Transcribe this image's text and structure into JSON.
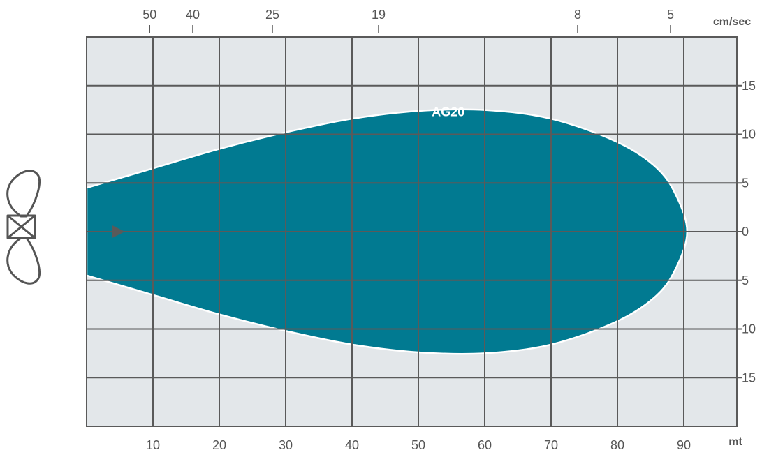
{
  "chart_data": {
    "type": "area",
    "title": "",
    "x_axis": {
      "unit": "mt",
      "range": [
        0,
        98
      ],
      "ticks": [
        10,
        20,
        30,
        40,
        50,
        60,
        70,
        80,
        90
      ],
      "tick_labels": [
        "10",
        "20",
        "30",
        "40",
        "50",
        "60",
        "70",
        "80",
        "90"
      ],
      "grid": true
    },
    "y_axis": {
      "range": [
        -20,
        20
      ],
      "ticks": [
        15,
        10,
        5,
        0,
        -5,
        -10,
        -15
      ],
      "tick_labels": [
        "15",
        "10",
        "5",
        "0",
        "5",
        "10",
        "15"
      ],
      "grid": true
    },
    "top_axis": {
      "unit": "cm/sec",
      "ticks": [
        {
          "x": 9.5,
          "label": "50"
        },
        {
          "x": 16,
          "label": "40"
        },
        {
          "x": 28,
          "label": "25"
        },
        {
          "x": 44,
          "label": "19"
        },
        {
          "x": 74,
          "label": "8"
        },
        {
          "x": 88,
          "label": "5"
        }
      ]
    },
    "series": [
      {
        "name": "AG20",
        "label_position": [
          54.5,
          12.3
        ],
        "color": "#017a91",
        "upper": [
          {
            "x": 0,
            "y": 4.5
          },
          {
            "x": 10,
            "y": 6.5
          },
          {
            "x": 20,
            "y": 8.5
          },
          {
            "x": 30,
            "y": 10.2
          },
          {
            "x": 40,
            "y": 11.6
          },
          {
            "x": 50,
            "y": 12.4
          },
          {
            "x": 60,
            "y": 12.5
          },
          {
            "x": 70,
            "y": 11.6
          },
          {
            "x": 80,
            "y": 9.2
          },
          {
            "x": 86,
            "y": 6.5
          },
          {
            "x": 89,
            "y": 3.5
          },
          {
            "x": 90.5,
            "y": 0
          }
        ],
        "lower": [
          {
            "x": 0,
            "y": -4.5
          },
          {
            "x": 10,
            "y": -6.5
          },
          {
            "x": 20,
            "y": -8.5
          },
          {
            "x": 30,
            "y": -10.2
          },
          {
            "x": 40,
            "y": -11.6
          },
          {
            "x": 50,
            "y": -12.4
          },
          {
            "x": 60,
            "y": -12.5
          },
          {
            "x": 70,
            "y": -11.6
          },
          {
            "x": 80,
            "y": -9.2
          },
          {
            "x": 86,
            "y": -6.5
          },
          {
            "x": 89,
            "y": -3.5
          },
          {
            "x": 90.5,
            "y": 0
          }
        ]
      }
    ],
    "colors": {
      "plot_background": "#e3e7ea",
      "grid": "#5a5a5a",
      "axis_text": "#555555",
      "fill": "#017a91",
      "outline": "#ffffff",
      "icon": "#555555"
    },
    "icons": {
      "propeller": "propeller-icon",
      "flow_arrow": "flow-direction-arrow-icon"
    }
  }
}
